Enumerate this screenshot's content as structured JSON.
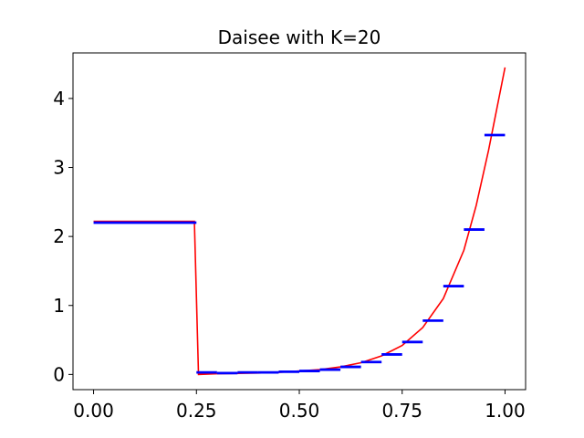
{
  "chart_data": {
    "type": "line",
    "title": "Daisee with K=20",
    "xlabel": "",
    "ylabel": "",
    "xlim": [
      -0.05,
      1.05
    ],
    "ylim": [
      -0.22,
      4.66
    ],
    "xticks": [
      0.0,
      0.25,
      0.5,
      0.75,
      1.0
    ],
    "xtick_labels": [
      "0.00",
      "0.25",
      "0.50",
      "0.75",
      "1.00"
    ],
    "yticks": [
      0,
      1,
      2,
      3,
      4
    ],
    "ytick_labels": [
      "0",
      "1",
      "2",
      "3",
      "4"
    ],
    "grid": false,
    "legend": "none",
    "series": [
      {
        "kind": "line",
        "color": "#ff0000",
        "x": [
          0.0,
          0.245,
          0.255,
          0.3,
          0.35,
          0.4,
          0.45,
          0.5,
          0.55,
          0.6,
          0.65,
          0.7,
          0.75,
          0.8,
          0.85,
          0.9,
          0.93,
          0.96,
          0.98,
          1.0
        ],
        "y": [
          2.22,
          2.22,
          0.0,
          0.01,
          0.015,
          0.02,
          0.03,
          0.05,
          0.07,
          0.11,
          0.17,
          0.27,
          0.42,
          0.68,
          1.1,
          1.8,
          2.45,
          3.25,
          3.85,
          4.45
        ]
      },
      {
        "kind": "steps",
        "color": "#0000ff",
        "segments": [
          {
            "x0": 0.0,
            "x1": 0.25,
            "y": 2.2
          },
          {
            "x0": 0.25,
            "x1": 0.3,
            "y": 0.03
          },
          {
            "x0": 0.3,
            "x1": 0.35,
            "y": 0.02
          },
          {
            "x0": 0.35,
            "x1": 0.4,
            "y": 0.03
          },
          {
            "x0": 0.4,
            "x1": 0.45,
            "y": 0.03
          },
          {
            "x0": 0.45,
            "x1": 0.5,
            "y": 0.04
          },
          {
            "x0": 0.5,
            "x1": 0.55,
            "y": 0.05
          },
          {
            "x0": 0.55,
            "x1": 0.6,
            "y": 0.07
          },
          {
            "x0": 0.6,
            "x1": 0.65,
            "y": 0.11
          },
          {
            "x0": 0.65,
            "x1": 0.7,
            "y": 0.18
          },
          {
            "x0": 0.7,
            "x1": 0.75,
            "y": 0.29
          },
          {
            "x0": 0.75,
            "x1": 0.8,
            "y": 0.47
          },
          {
            "x0": 0.8,
            "x1": 0.85,
            "y": 0.78
          },
          {
            "x0": 0.85,
            "x1": 0.9,
            "y": 1.28
          },
          {
            "x0": 0.9,
            "x1": 0.95,
            "y": 2.1
          },
          {
            "x0": 0.95,
            "x1": 1.0,
            "y": 3.47
          }
        ]
      }
    ]
  }
}
